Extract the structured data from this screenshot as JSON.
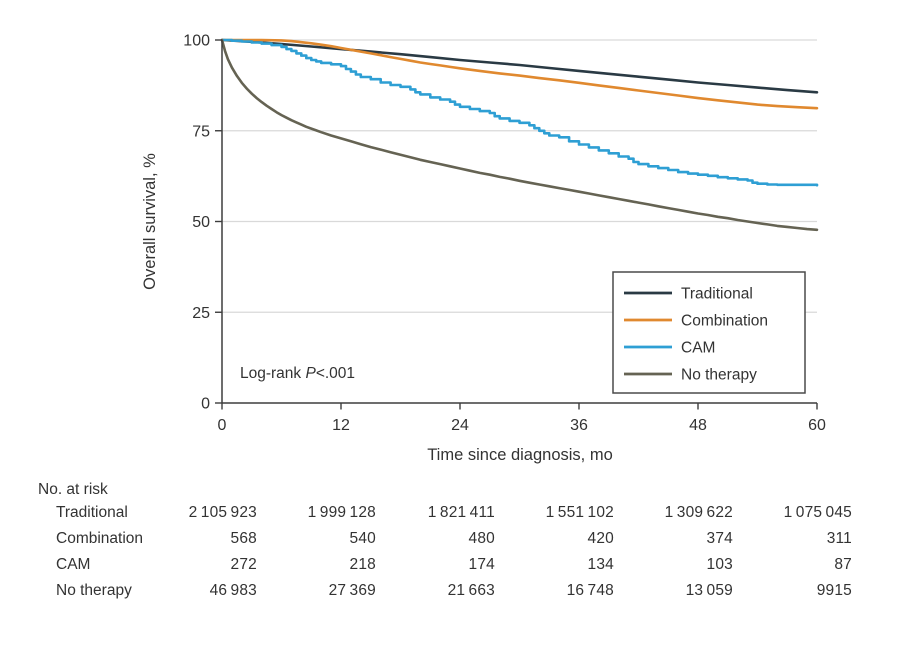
{
  "chart_data": {
    "type": "line",
    "title": "",
    "xlabel": "Time since diagnosis, mo",
    "ylabel": "Overall survival, %",
    "xlim": [
      0,
      60
    ],
    "ylim": [
      0,
      100
    ],
    "xticks": [
      0,
      12,
      24,
      36,
      48,
      60
    ],
    "yticks": [
      0,
      25,
      50,
      75,
      100
    ],
    "grid": "horizontal",
    "legend_position": "inside-bottom-right",
    "annotation": {
      "text_prefix": "Log-rank ",
      "italic": "P",
      "text_suffix": "<.001"
    },
    "series": [
      {
        "name": "Traditional",
        "color": "#2A3A44",
        "step": false,
        "points": [
          [
            0,
            100
          ],
          [
            3,
            99.5
          ],
          [
            6,
            98.9
          ],
          [
            9,
            98.2
          ],
          [
            12,
            97.5
          ],
          [
            15,
            96.8
          ],
          [
            18,
            96.1
          ],
          [
            21,
            95.3
          ],
          [
            24,
            94.5
          ],
          [
            27,
            93.8
          ],
          [
            30,
            93.1
          ],
          [
            33,
            92.3
          ],
          [
            36,
            91.5
          ],
          [
            39,
            90.7
          ],
          [
            42,
            89.9
          ],
          [
            45,
            89.1
          ],
          [
            48,
            88.3
          ],
          [
            51,
            87.6
          ],
          [
            54,
            86.9
          ],
          [
            57,
            86.2
          ],
          [
            60,
            85.6
          ]
        ]
      },
      {
        "name": "Combination",
        "color": "#E0892F",
        "step": false,
        "points": [
          [
            0,
            100
          ],
          [
            2,
            100
          ],
          [
            4,
            100
          ],
          [
            6,
            99.9
          ],
          [
            7,
            99.7
          ],
          [
            8,
            99.4
          ],
          [
            9,
            99.1
          ],
          [
            10,
            98.7
          ],
          [
            11,
            98.3
          ],
          [
            12,
            97.8
          ],
          [
            13,
            97.3
          ],
          [
            14,
            96.8
          ],
          [
            15,
            96.3
          ],
          [
            16,
            95.8
          ],
          [
            17,
            95.3
          ],
          [
            18,
            94.8
          ],
          [
            19,
            94.3
          ],
          [
            20,
            93.8
          ],
          [
            21,
            93.4
          ],
          [
            22,
            93.0
          ],
          [
            23,
            92.6
          ],
          [
            24,
            92.2
          ],
          [
            26,
            91.5
          ],
          [
            28,
            90.8
          ],
          [
            30,
            90.2
          ],
          [
            32,
            89.5
          ],
          [
            34,
            88.9
          ],
          [
            36,
            88.2
          ],
          [
            38,
            87.5
          ],
          [
            40,
            86.8
          ],
          [
            42,
            86.1
          ],
          [
            44,
            85.4
          ],
          [
            46,
            84.7
          ],
          [
            48,
            84.0
          ],
          [
            50,
            83.4
          ],
          [
            52,
            82.8
          ],
          [
            54,
            82.2
          ],
          [
            56,
            81.8
          ],
          [
            58,
            81.5
          ],
          [
            60,
            81.2
          ]
        ]
      },
      {
        "name": "CAM",
        "color": "#2E9FD4",
        "step": true,
        "points": [
          [
            0,
            100
          ],
          [
            1,
            99.8
          ],
          [
            2,
            99.6
          ],
          [
            3,
            99.3
          ],
          [
            4,
            99.0
          ],
          [
            5,
            98.6
          ],
          [
            6,
            98.1
          ],
          [
            6.5,
            97.5
          ],
          [
            7,
            97.0
          ],
          [
            7.5,
            96.3
          ],
          [
            8,
            95.7
          ],
          [
            8.5,
            95.0
          ],
          [
            9,
            94.5
          ],
          [
            9.5,
            94.1
          ],
          [
            10,
            93.7
          ],
          [
            11,
            93.3
          ],
          [
            12,
            92.8
          ],
          [
            12.5,
            92.0
          ],
          [
            13,
            91.3
          ],
          [
            13.5,
            90.5
          ],
          [
            14,
            89.8
          ],
          [
            15,
            89.2
          ],
          [
            16,
            88.3
          ],
          [
            17,
            87.6
          ],
          [
            18,
            87.1
          ],
          [
            19,
            86.4
          ],
          [
            19.5,
            85.6
          ],
          [
            20,
            85.0
          ],
          [
            21,
            84.2
          ],
          [
            22,
            83.6
          ],
          [
            23,
            83.0
          ],
          [
            23.5,
            82.2
          ],
          [
            24,
            81.6
          ],
          [
            25,
            81.0
          ],
          [
            26,
            80.4
          ],
          [
            27,
            79.9
          ],
          [
            27.5,
            79.0
          ],
          [
            28,
            78.4
          ],
          [
            29,
            77.7
          ],
          [
            30,
            77.2
          ],
          [
            31,
            76.5
          ],
          [
            31.5,
            75.7
          ],
          [
            32,
            75.0
          ],
          [
            32.5,
            74.3
          ],
          [
            33,
            73.7
          ],
          [
            34,
            73.2
          ],
          [
            35,
            72.1
          ],
          [
            36,
            71.2
          ],
          [
            37,
            70.4
          ],
          [
            38,
            69.6
          ],
          [
            39,
            68.8
          ],
          [
            40,
            67.9
          ],
          [
            41,
            67.3
          ],
          [
            41.5,
            66.4
          ],
          [
            42,
            65.8
          ],
          [
            43,
            65.2
          ],
          [
            44,
            64.7
          ],
          [
            45,
            64.2
          ],
          [
            46,
            63.6
          ],
          [
            47,
            63.2
          ],
          [
            48,
            62.9
          ],
          [
            49,
            62.6
          ],
          [
            50,
            62.2
          ],
          [
            51,
            61.9
          ],
          [
            52,
            61.6
          ],
          [
            53,
            61.3
          ],
          [
            53.5,
            60.7
          ],
          [
            54,
            60.4
          ],
          [
            55,
            60.2
          ],
          [
            56,
            60.1
          ],
          [
            60,
            60.0
          ]
        ]
      },
      {
        "name": "No therapy",
        "color": "#656353",
        "step": false,
        "points": [
          [
            0,
            100
          ],
          [
            0.3,
            97.0
          ],
          [
            0.6,
            94.7
          ],
          [
            1,
            92.4
          ],
          [
            1.5,
            90.1
          ],
          [
            2,
            88.2
          ],
          [
            2.5,
            86.6
          ],
          [
            3,
            85.2
          ],
          [
            3.5,
            84.0
          ],
          [
            4,
            82.9
          ],
          [
            4.5,
            81.9
          ],
          [
            5,
            81.0
          ],
          [
            5.5,
            80.1
          ],
          [
            6,
            79.3
          ],
          [
            6.5,
            78.6
          ],
          [
            7,
            77.9
          ],
          [
            7.5,
            77.3
          ],
          [
            8,
            76.7
          ],
          [
            8.5,
            76.1
          ],
          [
            9,
            75.6
          ],
          [
            9.5,
            75.1
          ],
          [
            10,
            74.6
          ],
          [
            11,
            73.7
          ],
          [
            12,
            72.9
          ],
          [
            13,
            72.1
          ],
          [
            14,
            71.3
          ],
          [
            15,
            70.5
          ],
          [
            16,
            69.8
          ],
          [
            17,
            69.1
          ],
          [
            18,
            68.4
          ],
          [
            19,
            67.7
          ],
          [
            20,
            67.0
          ],
          [
            21,
            66.4
          ],
          [
            22,
            65.8
          ],
          [
            23,
            65.2
          ],
          [
            24,
            64.6
          ],
          [
            25,
            64.0
          ],
          [
            26,
            63.4
          ],
          [
            27,
            62.9
          ],
          [
            28,
            62.3
          ],
          [
            29,
            61.8
          ],
          [
            30,
            61.2
          ],
          [
            31,
            60.7
          ],
          [
            32,
            60.2
          ],
          [
            33,
            59.7
          ],
          [
            34,
            59.2
          ],
          [
            35,
            58.7
          ],
          [
            36,
            58.2
          ],
          [
            37,
            57.7
          ],
          [
            38,
            57.2
          ],
          [
            39,
            56.7
          ],
          [
            40,
            56.2
          ],
          [
            41,
            55.7
          ],
          [
            42,
            55.2
          ],
          [
            43,
            54.7
          ],
          [
            44,
            54.2
          ],
          [
            45,
            53.7
          ],
          [
            46,
            53.2
          ],
          [
            47,
            52.7
          ],
          [
            48,
            52.2
          ],
          [
            49,
            51.8
          ],
          [
            50,
            51.3
          ],
          [
            51,
            50.9
          ],
          [
            52,
            50.4
          ],
          [
            53,
            50.0
          ],
          [
            54,
            49.6
          ],
          [
            55,
            49.2
          ],
          [
            56,
            48.8
          ],
          [
            57,
            48.5
          ],
          [
            58,
            48.2
          ],
          [
            59,
            47.9
          ],
          [
            60,
            47.7
          ]
        ]
      }
    ]
  },
  "risk_table": {
    "title": "No. at risk",
    "rows": [
      {
        "label": "Traditional",
        "values": [
          "2 105 923",
          "1 999 128",
          "1 821 411",
          "1 551 102",
          "1 309 622",
          "1 075 045"
        ]
      },
      {
        "label": "Combination",
        "values": [
          "568",
          "540",
          "480",
          "420",
          "374",
          "311"
        ]
      },
      {
        "label": "CAM",
        "values": [
          "272",
          "218",
          "174",
          "134",
          "103",
          "87"
        ]
      },
      {
        "label": "No therapy",
        "values": [
          "46 983",
          "27 369",
          "21 663",
          "16 748",
          "13 059",
          "9915"
        ]
      }
    ]
  },
  "colors": {
    "grid": "#d9d9d9",
    "axis": "#3d3d3d",
    "text": "#333333",
    "legend_border": "#4a4a4a"
  }
}
